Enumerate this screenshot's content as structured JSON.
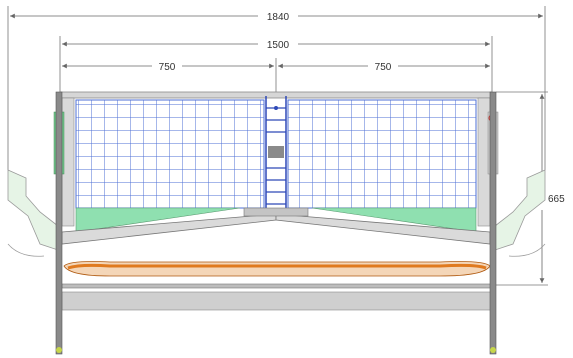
{
  "dimensions": {
    "overall_width": "1840",
    "inner_width": "1500",
    "left_half": "750",
    "right_half": "750",
    "height": "665"
  },
  "colors": {
    "mesh": "#4d6fd6",
    "frame_gray": "#cfcfcf",
    "frame_dark": "#5a5a5a",
    "green": "#8fe0b0",
    "orange": "#e07a1f",
    "dimension_line": "#666666"
  },
  "icons": [
    "ladder",
    "dimension-arrow"
  ]
}
